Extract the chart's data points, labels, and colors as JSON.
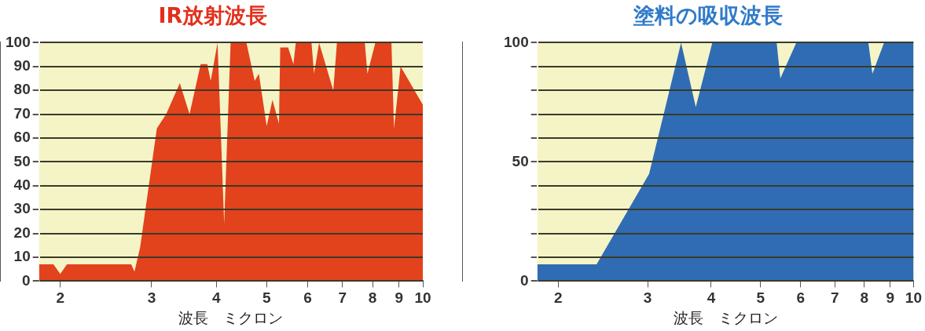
{
  "chart_data": [
    {
      "type": "area",
      "title": "IR放射波長",
      "xlabel": "波長　ミクロン",
      "log": "x",
      "xlim": [
        1.82,
        10
      ],
      "xticks": [
        2,
        3,
        4,
        5,
        6,
        7,
        8,
        9,
        10
      ],
      "ylim": [
        0,
        100
      ],
      "yticks": [
        0,
        10,
        20,
        30,
        40,
        50,
        60,
        70,
        80,
        90,
        100
      ],
      "grid": "y",
      "marker": "none",
      "legend": false,
      "series": [
        {
          "color": "#e2421c",
          "x": [
            1.82,
            1.94,
            2.0,
            2.06,
            2.74,
            2.78,
            2.85,
            3.07,
            3.2,
            3.4,
            3.55,
            3.73,
            3.84,
            3.9,
            4.02,
            4.14,
            4.26,
            4.57,
            4.74,
            4.83,
            5.0,
            5.13,
            5.28,
            5.31,
            5.5,
            5.63,
            5.69,
            6.1,
            6.17,
            6.31,
            6.72,
            6.83,
            7.73,
            7.82,
            8.1,
            8.7,
            8.8,
            9.06,
            9.94,
            10
          ],
          "values": [
            7,
            7,
            3,
            7,
            7,
            4,
            14,
            64,
            70,
            83,
            70,
            91,
            91,
            84,
            100,
            24,
            100,
            100,
            84,
            87,
            65,
            76,
            66,
            98,
            98,
            91,
            100,
            100,
            87,
            100,
            80,
            100,
            100,
            87,
            100,
            100,
            64,
            90,
            75,
            74
          ]
        }
      ]
    },
    {
      "type": "area",
      "title": "塗料の吸収波長",
      "xlabel": "波長　ミクロン",
      "log": "x",
      "xlim": [
        1.82,
        10
      ],
      "xticks": [
        2,
        3,
        4,
        5,
        6,
        7,
        8,
        9,
        10
      ],
      "ylim": [
        0,
        100
      ],
      "yticks": [
        0,
        {
          "value": 10,
          "label": null
        },
        {
          "value": 20,
          "label": null
        },
        {
          "value": 30,
          "label": null
        },
        {
          "value": 40,
          "label": null
        },
        50,
        {
          "value": 60,
          "label": null
        },
        {
          "value": 70,
          "label": null
        },
        {
          "value": 80,
          "label": null
        },
        {
          "value": 90,
          "label": null
        },
        100
      ],
      "grid": "y",
      "marker": "none",
      "legend": false,
      "series": [
        {
          "color": "#2f6cb3",
          "x": [
            1.82,
            2.38,
            3.02,
            3.49,
            3.73,
            4.02,
            5.38,
            5.47,
            5.88,
            8.15,
            8.3,
            8.75,
            10
          ],
          "values": [
            7,
            7,
            45,
            100,
            73,
            100,
            100,
            85,
            100,
            100,
            87,
            100,
            100
          ]
        }
      ]
    }
  ]
}
